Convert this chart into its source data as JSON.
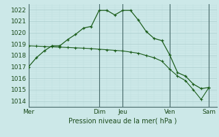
{
  "background_color": "#cce8e8",
  "grid_color_major": "#aacccc",
  "grid_color_minor": "#bbdddd",
  "line_color": "#1a5c1a",
  "marker_color": "#1a5c1a",
  "xlabel": "Pression niveau de la mer( hPa )",
  "ylim": [
    1013.5,
    1022.5
  ],
  "yticks": [
    1014,
    1015,
    1016,
    1017,
    1018,
    1019,
    1020,
    1021,
    1022
  ],
  "day_labels": [
    "Mer",
    "Dim",
    "Jeu",
    "Ven",
    "Sam"
  ],
  "day_positions": [
    0,
    9,
    12,
    18,
    23
  ],
  "xlim": [
    0,
    24
  ],
  "vline_positions": [
    0,
    9,
    12,
    18,
    23
  ],
  "series1_x": [
    0,
    1,
    2,
    3,
    4,
    5,
    6,
    7,
    8,
    9,
    10,
    11,
    12,
    13,
    14,
    15,
    16,
    17,
    18,
    19,
    20,
    21,
    22,
    23
  ],
  "series1_y": [
    1017.0,
    1017.8,
    1018.4,
    1018.85,
    1018.85,
    1019.4,
    1019.85,
    1020.4,
    1020.55,
    1021.95,
    1021.95,
    1021.55,
    1021.95,
    1021.95,
    1021.1,
    1020.1,
    1019.5,
    1019.3,
    1018.05,
    1016.5,
    1016.2,
    1015.5,
    1015.1,
    1015.2
  ],
  "series2_x": [
    0,
    1,
    2,
    3,
    4,
    5,
    6,
    7,
    8,
    9,
    10,
    11,
    12,
    13,
    14,
    15,
    16,
    17,
    18,
    19,
    20,
    21,
    22,
    23
  ],
  "series2_y": [
    1018.85,
    1018.82,
    1018.79,
    1018.76,
    1018.73,
    1018.7,
    1018.67,
    1018.64,
    1018.6,
    1018.55,
    1018.5,
    1018.45,
    1018.4,
    1018.3,
    1018.2,
    1018.0,
    1017.8,
    1017.5,
    1016.8,
    1016.2,
    1015.8,
    1015.0,
    1014.15,
    1015.2
  ]
}
